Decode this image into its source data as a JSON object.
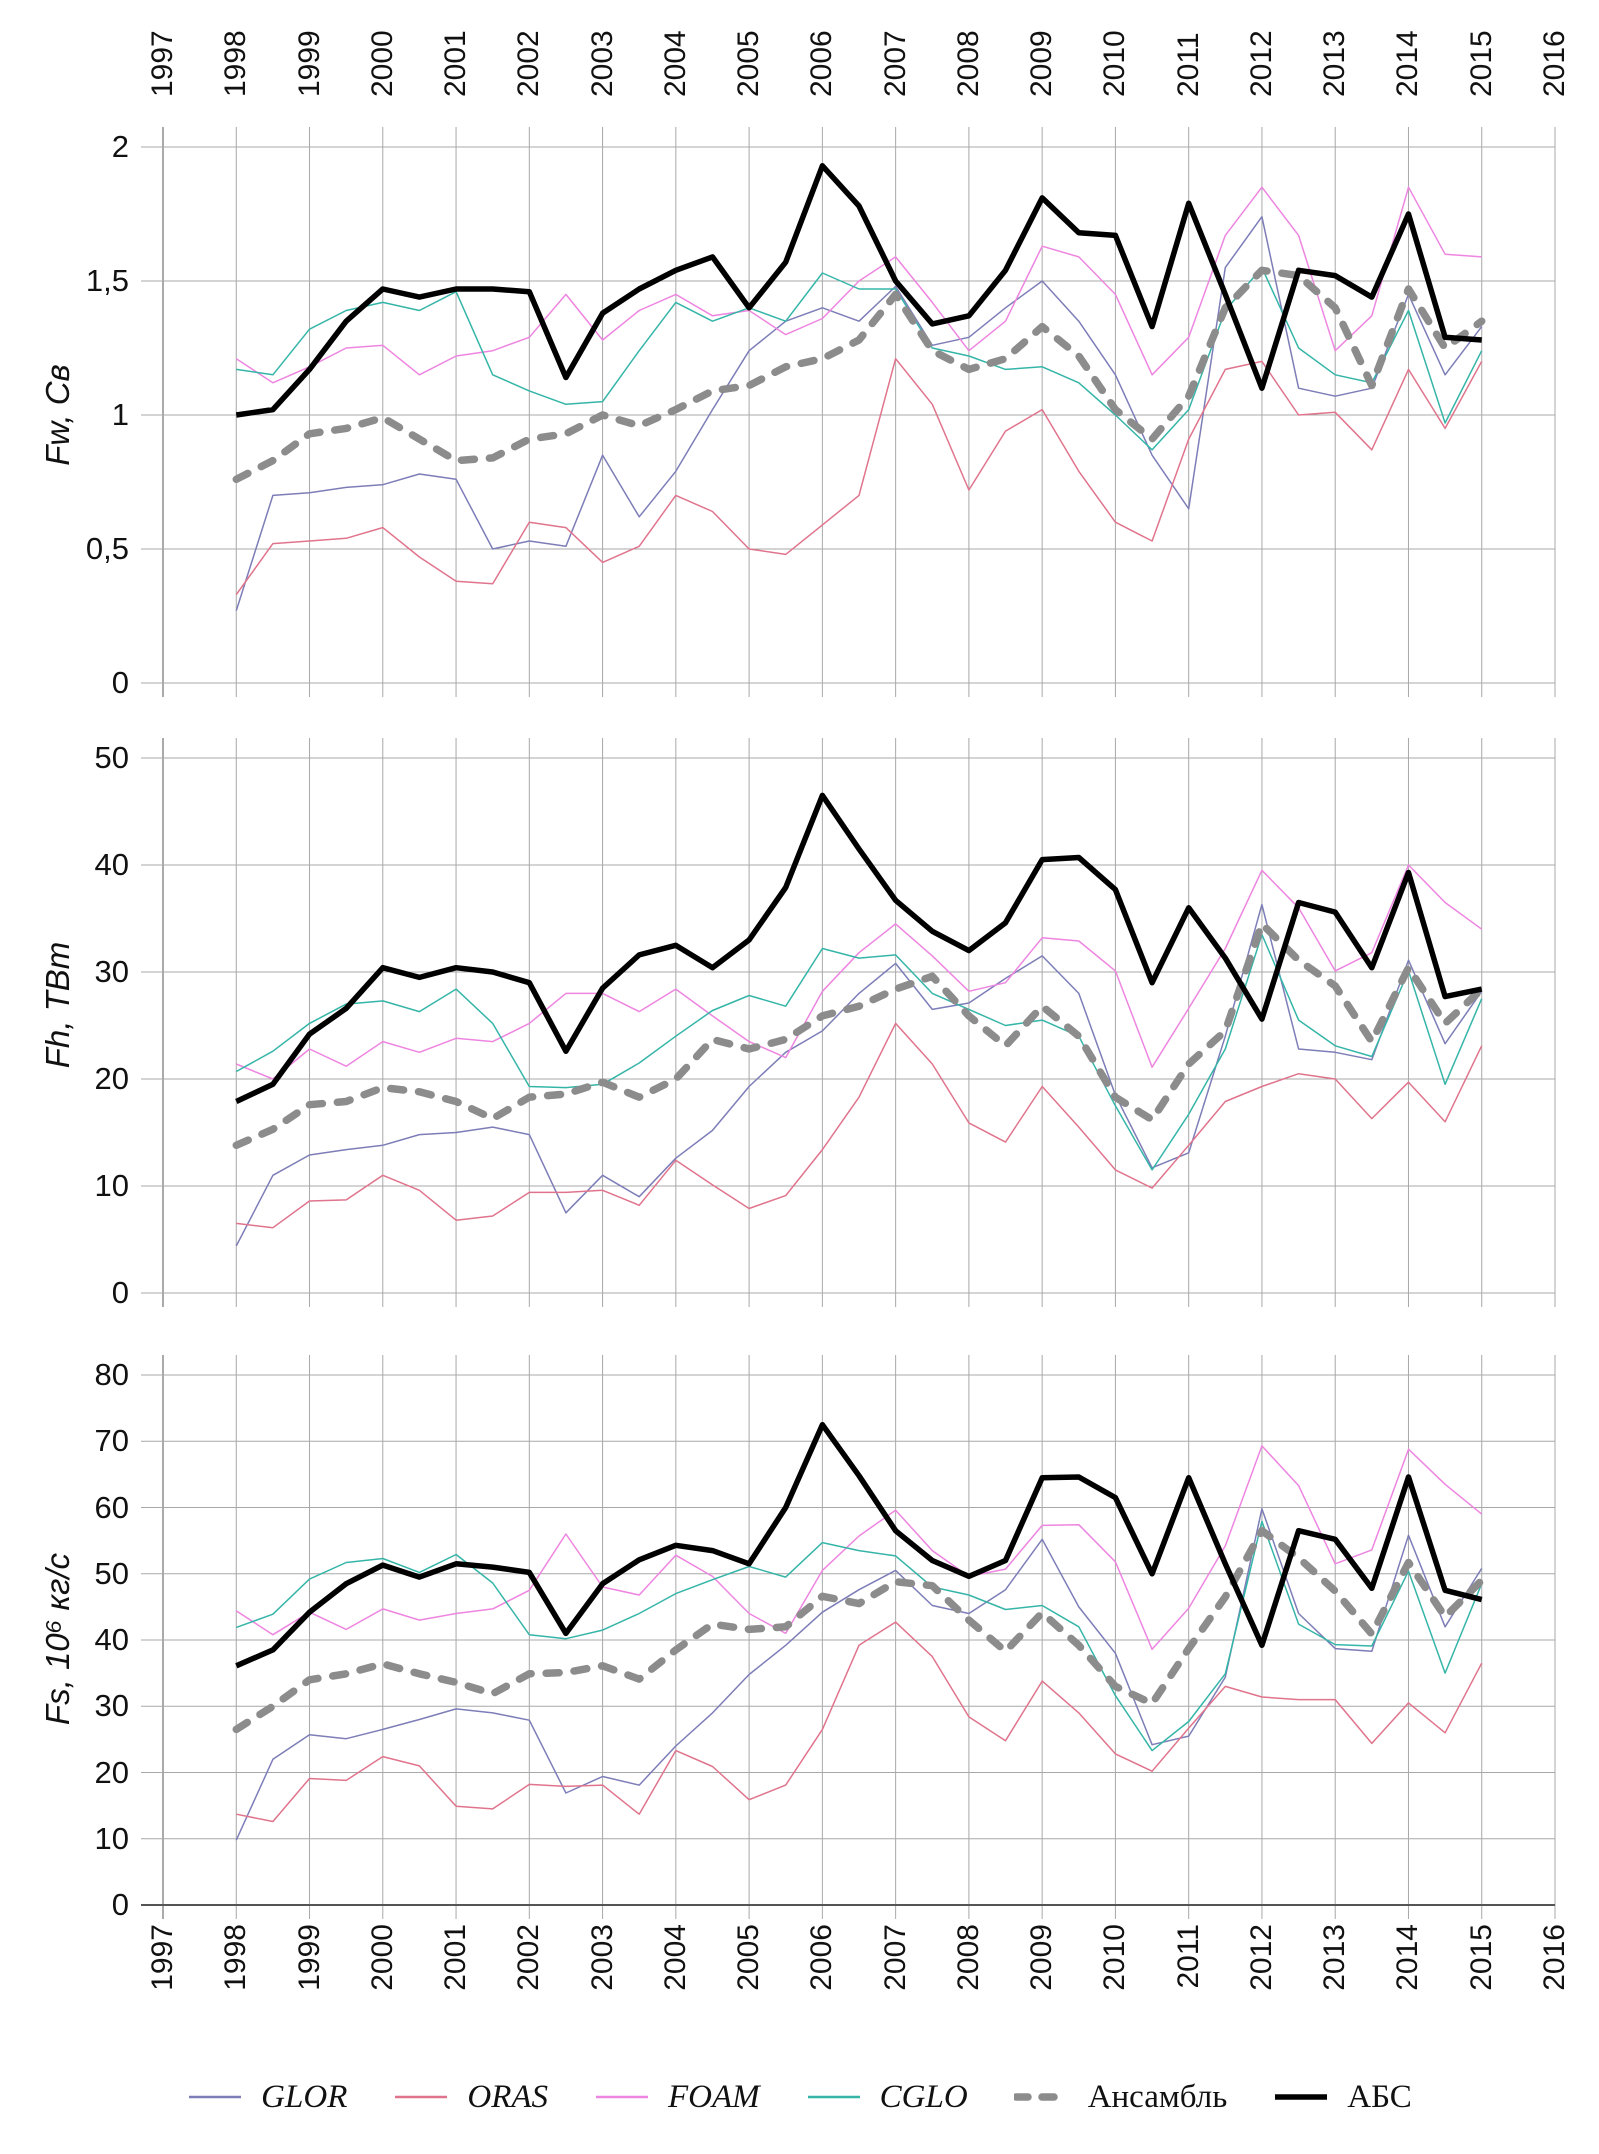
{
  "page": {
    "background": "#ffffff"
  },
  "axis": {
    "years": [
      "1997",
      "1998",
      "1999",
      "2000",
      "2001",
      "2002",
      "2003",
      "2004",
      "2005",
      "2006",
      "2007",
      "2008",
      "2009",
      "2010",
      "2011",
      "2012",
      "2013",
      "2014",
      "2015",
      "2016"
    ],
    "x_min": 1997,
    "x_max": 2016
  },
  "chart_data": {
    "type": "line",
    "title": "",
    "grid": true,
    "legend_position": "bottom",
    "x": [
      1998,
      1998.5,
      1999,
      1999.5,
      2000,
      2000.5,
      2001,
      2001.5,
      2002,
      2002.5,
      2003,
      2003.5,
      2004,
      2004.5,
      2005,
      2005.5,
      2006,
      2006.5,
      2007,
      2007.5,
      2008,
      2008.5,
      2009,
      2009.5,
      2010,
      2010.5,
      2011,
      2011.5,
      2012,
      2012.5,
      2013,
      2013.5,
      2014,
      2014.5,
      2015
    ],
    "series_styles": [
      {
        "name": "GLOR",
        "color": "#7d7db8",
        "width": 1.5,
        "dash": null,
        "italic": true
      },
      {
        "name": "ORAS",
        "color": "#e0748c",
        "width": 1.5,
        "dash": null,
        "italic": true
      },
      {
        "name": "FOAM",
        "color": "#ee85e0",
        "width": 1.5,
        "dash": null,
        "italic": true
      },
      {
        "name": "CGLO",
        "color": "#35b5a8",
        "width": 1.5,
        "dash": null,
        "italic": true
      },
      {
        "name": "Ансамбль",
        "color": "#8c8c8c",
        "width": 7.5,
        "dash": "13 15",
        "italic": false
      },
      {
        "name": "АБС",
        "color": "#000000",
        "width": 5.5,
        "dash": null,
        "italic": false
      }
    ],
    "charts": [
      {
        "ylabel_variable": "Fw",
        "ylabel_unit": "Св",
        "ymin": 0,
        "ymax": 2,
        "yticks": [
          {
            "value": 2,
            "label": "2"
          },
          {
            "value": 1.5,
            "label": "1,5"
          },
          {
            "value": 1,
            "label": "1"
          },
          {
            "value": 0.5,
            "label": "0,5"
          },
          {
            "value": 0,
            "label": "0"
          }
        ],
        "series": [
          {
            "name": "GLOR",
            "values": [
              0.27,
              0.7,
              0.71,
              0.73,
              0.74,
              0.78,
              0.76,
              0.5,
              0.53,
              0.51,
              0.85,
              0.62,
              0.79,
              1.02,
              1.24,
              1.35,
              1.4,
              1.35,
              1.48,
              1.26,
              1.29,
              1.4,
              1.5,
              1.35,
              1.15,
              0.85,
              0.65,
              1.55,
              1.74,
              1.1,
              1.07,
              1.1,
              1.45,
              1.15,
              1.33
            ]
          },
          {
            "name": "ORAS",
            "values": [
              0.33,
              0.52,
              0.53,
              0.54,
              0.58,
              0.47,
              0.38,
              0.37,
              0.6,
              0.58,
              0.45,
              0.51,
              0.7,
              0.64,
              0.5,
              0.48,
              0.59,
              0.7,
              1.21,
              1.04,
              0.72,
              0.94,
              1.02,
              0.79,
              0.6,
              0.53,
              0.91,
              1.17,
              1.2,
              1.0,
              1.01,
              0.87,
              1.17,
              0.95,
              1.2
            ]
          },
          {
            "name": "FOAM",
            "values": [
              1.21,
              1.12,
              1.18,
              1.25,
              1.26,
              1.15,
              1.22,
              1.24,
              1.29,
              1.45,
              1.28,
              1.39,
              1.45,
              1.37,
              1.39,
              1.3,
              1.36,
              1.5,
              1.59,
              1.42,
              1.24,
              1.35,
              1.63,
              1.59,
              1.45,
              1.15,
              1.29,
              1.67,
              1.85,
              1.67,
              1.24,
              1.37,
              1.85,
              1.6,
              1.59
            ]
          },
          {
            "name": "CGLO",
            "values": [
              1.17,
              1.15,
              1.32,
              1.39,
              1.42,
              1.39,
              1.46,
              1.15,
              1.09,
              1.04,
              1.05,
              1.24,
              1.42,
              1.35,
              1.4,
              1.35,
              1.53,
              1.47,
              1.47,
              1.25,
              1.22,
              1.17,
              1.18,
              1.12,
              1.0,
              0.87,
              1.02,
              1.39,
              1.55,
              1.25,
              1.15,
              1.12,
              1.39,
              0.97,
              1.24
            ]
          },
          {
            "name": "Ансамбль",
            "values": [
              0.76,
              0.83,
              0.93,
              0.95,
              0.99,
              0.91,
              0.83,
              0.84,
              0.91,
              0.93,
              1.0,
              0.96,
              1.02,
              1.09,
              1.11,
              1.18,
              1.21,
              1.28,
              1.45,
              1.24,
              1.17,
              1.21,
              1.33,
              1.22,
              1.02,
              0.91,
              1.07,
              1.4,
              1.54,
              1.52,
              1.4,
              1.11,
              1.47,
              1.25,
              1.35
            ]
          },
          {
            "name": "АБС",
            "values": [
              1.0,
              1.02,
              1.17,
              1.35,
              1.47,
              1.44,
              1.47,
              1.47,
              1.46,
              1.14,
              1.38,
              1.47,
              1.54,
              1.59,
              1.4,
              1.57,
              1.93,
              1.78,
              1.5,
              1.34,
              1.37,
              1.54,
              1.81,
              1.68,
              1.67,
              1.33,
              1.79,
              1.45,
              1.1,
              1.54,
              1.52,
              1.44,
              1.75,
              1.29,
              1.28
            ]
          }
        ]
      },
      {
        "ylabel_variable": "Fh",
        "ylabel_unit": "ТВт",
        "ymin": 0,
        "ymax": 50,
        "yticks": [
          {
            "value": 50,
            "label": "50"
          },
          {
            "value": 40,
            "label": "40"
          },
          {
            "value": 30,
            "label": "30"
          },
          {
            "value": 20,
            "label": "20"
          },
          {
            "value": 10,
            "label": "10"
          },
          {
            "value": 0,
            "label": "0"
          }
        ],
        "series": [
          {
            "name": "GLOR",
            "values": [
              4.4,
              11.0,
              12.9,
              13.4,
              13.8,
              14.8,
              15.0,
              15.5,
              14.8,
              7.5,
              11.0,
              9.0,
              12.6,
              15.2,
              19.3,
              22.5,
              24.5,
              28.0,
              30.8,
              26.5,
              27.1,
              29.4,
              31.5,
              28.0,
              18.5,
              11.7,
              13.1,
              24.0,
              36.3,
              22.8,
              22.5,
              21.8,
              31.1,
              23.3,
              28.2
            ]
          },
          {
            "name": "ORAS",
            "values": [
              6.5,
              6.1,
              8.6,
              8.7,
              11.0,
              9.6,
              6.8,
              7.2,
              9.4,
              9.4,
              9.6,
              8.2,
              12.4,
              10.1,
              7.9,
              9.1,
              13.4,
              18.3,
              25.2,
              21.4,
              15.9,
              14.1,
              19.3,
              15.5,
              11.5,
              9.8,
              13.8,
              17.9,
              19.3,
              20.5,
              20.0,
              16.3,
              19.7,
              16.0,
              23.1
            ]
          },
          {
            "name": "FOAM",
            "values": [
              21.4,
              20.0,
              22.8,
              21.2,
              23.5,
              22.5,
              23.8,
              23.5,
              25.2,
              28.0,
              28.0,
              26.3,
              28.4,
              25.9,
              23.5,
              22.0,
              28.2,
              31.8,
              34.5,
              31.5,
              28.2,
              29.0,
              33.2,
              32.9,
              30.1,
              21.1,
              26.6,
              32.2,
              39.5,
              36.0,
              30.1,
              31.8,
              40.0,
              36.5,
              34.0
            ]
          },
          {
            "name": "CGLO",
            "values": [
              20.7,
              22.6,
              25.2,
              27.0,
              27.3,
              26.3,
              28.4,
              25.2,
              19.3,
              19.2,
              19.5,
              21.5,
              24.0,
              26.4,
              27.8,
              26.8,
              32.2,
              31.3,
              31.6,
              28.0,
              26.5,
              25.0,
              25.5,
              24.0,
              17.5,
              11.5,
              16.7,
              22.8,
              33.5,
              25.5,
              23.1,
              22.1,
              30.1,
              19.5,
              27.5
            ]
          },
          {
            "name": "Ансамбль",
            "values": [
              13.8,
              15.3,
              17.6,
              17.9,
              19.2,
              18.8,
              17.9,
              16.3,
              18.3,
              18.6,
              19.7,
              18.3,
              20.0,
              23.7,
              22.8,
              23.7,
              25.9,
              26.8,
              28.4,
              29.6,
              25.9,
              23.1,
              26.8,
              24.0,
              18.3,
              16.2,
              21.4,
              24.5,
              34.5,
              31.1,
              28.7,
              23.5,
              30.4,
              25.2,
              28.4
            ]
          },
          {
            "name": "АБС",
            "values": [
              17.9,
              19.5,
              24.2,
              26.6,
              30.4,
              29.5,
              30.4,
              30.0,
              29.0,
              22.6,
              28.5,
              31.6,
              32.5,
              30.4,
              33.0,
              37.9,
              46.5,
              41.5,
              36.7,
              33.8,
              32.0,
              34.6,
              40.5,
              40.7,
              37.7,
              29.0,
              36.0,
              31.3,
              25.6,
              36.5,
              35.6,
              30.4,
              39.3,
              27.7,
              28.4
            ]
          }
        ]
      },
      {
        "ylabel_variable": "Fs",
        "ylabel_unit": "10⁶ кг/с",
        "ymin": 0,
        "ymax": 80,
        "yticks": [
          {
            "value": 80,
            "label": "80"
          },
          {
            "value": 70,
            "label": "70"
          },
          {
            "value": 60,
            "label": "60"
          },
          {
            "value": 50,
            "label": "50"
          },
          {
            "value": 40,
            "label": "40"
          },
          {
            "value": 30,
            "label": "30"
          },
          {
            "value": 20,
            "label": "20"
          },
          {
            "value": 10,
            "label": "10"
          },
          {
            "value": 0,
            "label": "0"
          }
        ],
        "series": [
          {
            "name": "GLOR",
            "values": [
              9.8,
              22.0,
              25.7,
              25.1,
              26.5,
              28.0,
              29.6,
              29.0,
              27.9,
              16.9,
              19.4,
              18.1,
              24.0,
              29.0,
              34.8,
              39.2,
              44.2,
              47.6,
              50.5,
              45.2,
              44.0,
              47.6,
              55.2,
              45.0,
              38.0,
              24.2,
              25.5,
              34.4,
              59.8,
              44.0,
              38.7,
              38.3,
              55.8,
              42.0,
              50.8
            ]
          },
          {
            "name": "ORAS",
            "values": [
              13.7,
              12.6,
              19.1,
              18.8,
              22.4,
              21.0,
              14.9,
              14.5,
              18.2,
              17.9,
              18.1,
              13.7,
              23.3,
              20.9,
              15.9,
              18.1,
              26.5,
              39.2,
              42.7,
              37.5,
              28.4,
              24.8,
              33.8,
              29.0,
              22.8,
              20.2,
              26.7,
              33.0,
              31.4,
              31.0,
              31.0,
              24.4,
              30.5,
              26.0,
              36.5
            ]
          },
          {
            "name": "FOAM",
            "values": [
              44.4,
              40.8,
              44.2,
              41.6,
              44.7,
              43.0,
              44.0,
              44.7,
              47.5,
              56.0,
              48.0,
              46.8,
              52.8,
              49.6,
              44.0,
              41.0,
              50.5,
              55.7,
              59.6,
              53.5,
              49.6,
              50.7,
              57.3,
              57.4,
              51.8,
              38.6,
              44.8,
              54.2,
              69.3,
              63.3,
              51.5,
              53.6,
              68.8,
              63.5,
              59.0
            ]
          },
          {
            "name": "CGLO",
            "values": [
              41.9,
              43.9,
              49.2,
              51.7,
              52.3,
              50.2,
              52.9,
              48.6,
              40.8,
              40.2,
              41.5,
              44.0,
              47.0,
              49.1,
              51.1,
              49.5,
              54.7,
              53.5,
              52.7,
              48.0,
              46.8,
              44.6,
              45.2,
              42.0,
              31.6,
              23.3,
              27.7,
              34.9,
              57.9,
              42.4,
              39.3,
              39.1,
              50.4,
              35.0,
              48.5
            ]
          },
          {
            "name": "Ансамбль",
            "values": [
              26.5,
              30.0,
              34.0,
              34.9,
              36.4,
              34.9,
              33.6,
              31.9,
              34.9,
              35.1,
              36.1,
              34.1,
              38.5,
              42.4,
              41.6,
              42.0,
              46.6,
              45.5,
              48.8,
              48.2,
              43.0,
              38.3,
              44.1,
              39.2,
              33.0,
              30.4,
              38.7,
              46.5,
              56.5,
              52.4,
              47.4,
              40.9,
              51.7,
              43.5,
              49.0
            ]
          },
          {
            "name": "АБС",
            "values": [
              36.1,
              38.5,
              44.2,
              48.5,
              51.3,
              49.5,
              51.5,
              51.0,
              50.2,
              41.0,
              48.5,
              52.1,
              54.3,
              53.5,
              51.5,
              60.0,
              72.5,
              64.8,
              56.5,
              52.0,
              49.6,
              52.0,
              64.5,
              64.6,
              61.5,
              50.0,
              64.5,
              51.5,
              39.2,
              56.5,
              55.2,
              47.8,
              64.6,
              47.5,
              46.1
            ]
          }
        ]
      }
    ],
    "colors": {
      "grid": "#a8a8a8",
      "axis": "#555555",
      "text": "#111111"
    }
  }
}
